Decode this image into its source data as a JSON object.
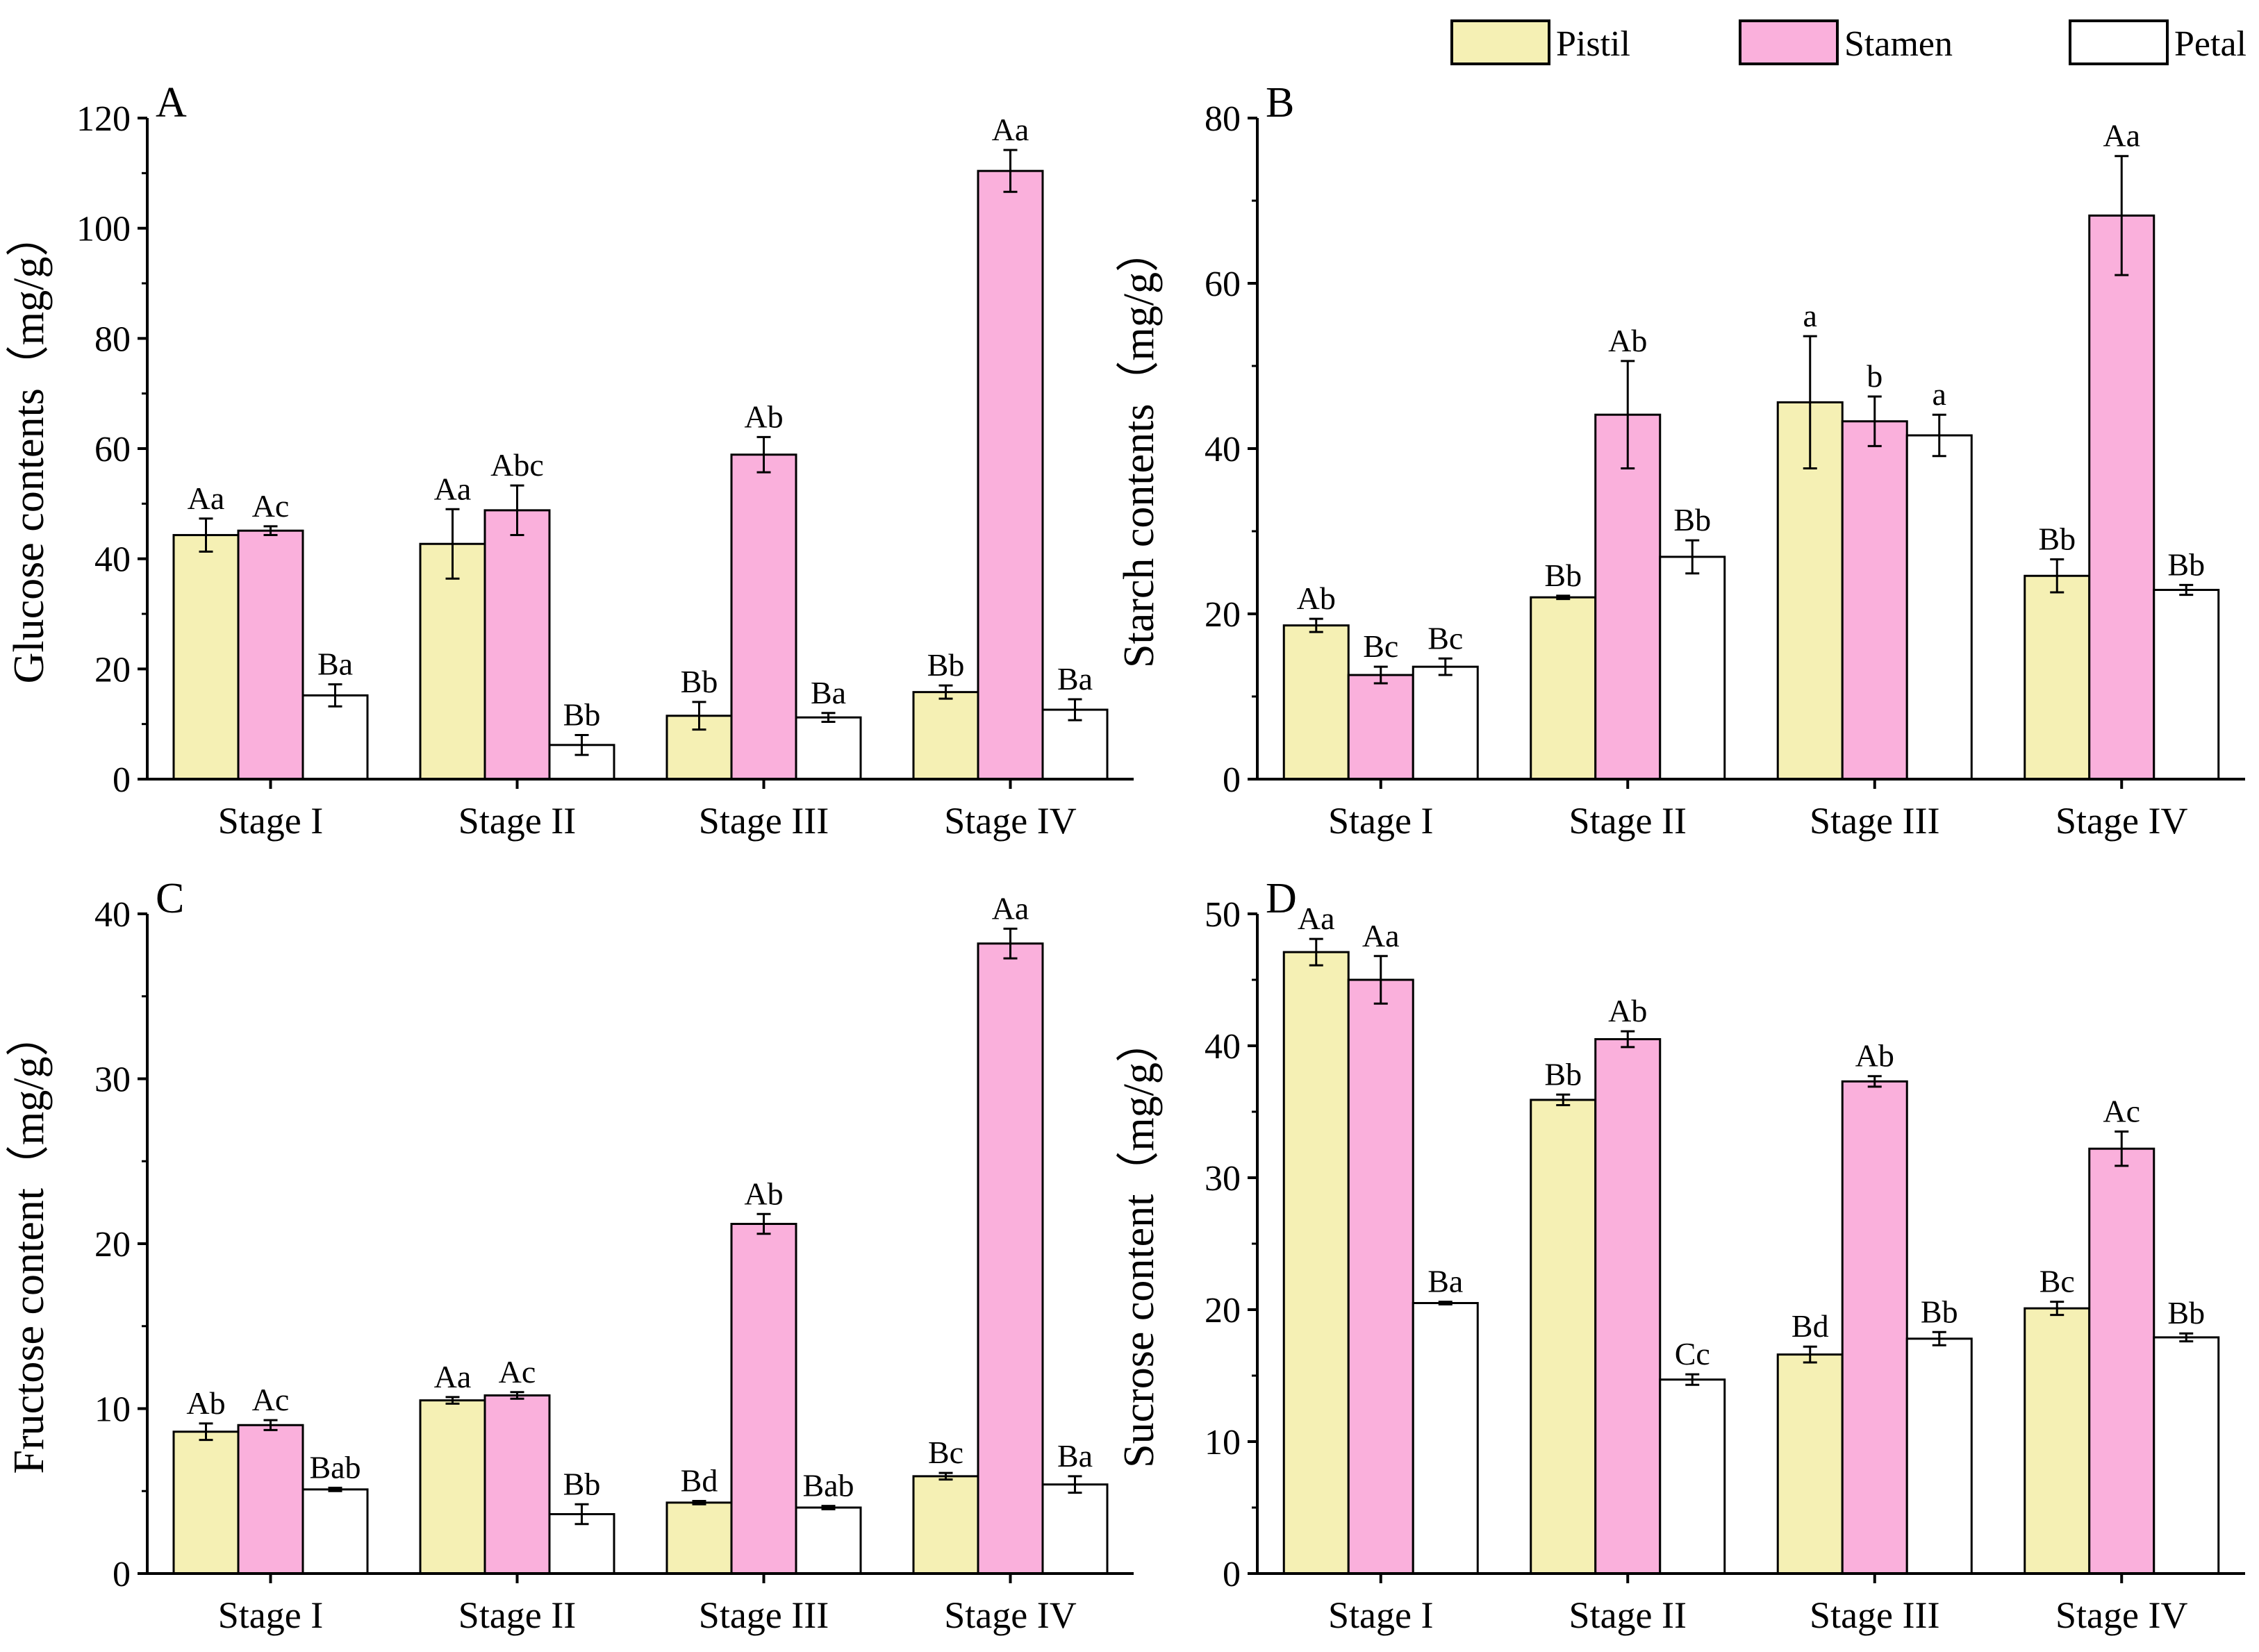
{
  "colors": {
    "pistil": "#f5f0b4",
    "stamen": "#fab0dc",
    "petal": "#ffffff",
    "stroke": "#000000"
  },
  "legend": [
    {
      "key": "pistil",
      "label": "Pistil"
    },
    {
      "key": "stamen",
      "label": "Stamen"
    },
    {
      "key": "petal",
      "label": "Petal"
    }
  ],
  "chart_data": [
    {
      "type": "bar",
      "panel": "A",
      "ylabel": "Glucose contents（mg/g）",
      "ylim": [
        0,
        120
      ],
      "yticks": [
        0,
        20,
        40,
        60,
        80,
        100,
        120
      ],
      "categories": [
        "Stage I",
        "Stage II",
        "Stage III",
        "Stage IV"
      ],
      "series": [
        {
          "name": "Pistil",
          "key": "pistil",
          "values": [
            44.3,
            42.7,
            11.5,
            15.8
          ],
          "errors": [
            3.0,
            6.3,
            2.5,
            1.2
          ],
          "labels": [
            "Aa",
            "Aa",
            "Bb",
            "Bb"
          ]
        },
        {
          "name": "Stamen",
          "key": "stamen",
          "values": [
            45.1,
            48.8,
            58.9,
            110.4
          ],
          "errors": [
            0.8,
            4.5,
            3.2,
            3.8
          ],
          "labels": [
            "Ac",
            "Abc",
            "Ab",
            "Aa"
          ]
        },
        {
          "name": "Petal",
          "key": "petal",
          "values": [
            15.2,
            6.2,
            11.2,
            12.6
          ],
          "errors": [
            2.0,
            1.8,
            0.8,
            1.9
          ],
          "labels": [
            "Ba",
            "Bb",
            "Ba",
            "Ba"
          ]
        }
      ]
    },
    {
      "type": "bar",
      "panel": "B",
      "ylabel": "Starch contents（mg/g）",
      "ylim": [
        0,
        80
      ],
      "yticks": [
        0,
        20,
        40,
        60,
        80
      ],
      "categories": [
        "Stage I",
        "Stage II",
        "Stage III",
        "Stage IV"
      ],
      "series": [
        {
          "name": "Pistil",
          "key": "pistil",
          "values": [
            18.6,
            22.0,
            45.6,
            24.6
          ],
          "errors": [
            0.8,
            0.2,
            8.0,
            2.0
          ],
          "labels": [
            "Ab",
            "Bb",
            "a",
            "Bb"
          ]
        },
        {
          "name": "Stamen",
          "key": "stamen",
          "values": [
            12.6,
            44.1,
            43.3,
            68.2
          ],
          "errors": [
            1.0,
            6.5,
            3.0,
            7.2
          ],
          "labels": [
            "Bc",
            "Ab",
            "b",
            "Aa"
          ]
        },
        {
          "name": "Petal",
          "key": "petal",
          "values": [
            13.6,
            26.9,
            41.6,
            22.9
          ],
          "errors": [
            1.0,
            2.0,
            2.5,
            0.6
          ],
          "labels": [
            "Bc",
            "Bb",
            "a",
            "Bb"
          ]
        }
      ]
    },
    {
      "type": "bar",
      "panel": "C",
      "ylabel": "Fructose content（mg/g）",
      "ylim": [
        0,
        40
      ],
      "yticks": [
        0,
        10,
        20,
        30,
        40
      ],
      "categories": [
        "Stage I",
        "Stage II",
        "Stage III",
        "Stage IV"
      ],
      "series": [
        {
          "name": "Pistil",
          "key": "pistil",
          "values": [
            8.6,
            10.5,
            4.3,
            5.9
          ],
          "errors": [
            0.5,
            0.2,
            0.1,
            0.2
          ],
          "labels": [
            "Ab",
            "Aa",
            "Bd",
            "Bc"
          ]
        },
        {
          "name": "Stamen",
          "key": "stamen",
          "values": [
            9.0,
            10.8,
            21.2,
            38.2
          ],
          "errors": [
            0.3,
            0.2,
            0.6,
            0.9
          ],
          "labels": [
            "Ac",
            "Ac",
            "Ab",
            "Aa"
          ]
        },
        {
          "name": "Petal",
          "key": "petal",
          "values": [
            5.1,
            3.6,
            4.0,
            5.4
          ],
          "errors": [
            0.1,
            0.6,
            0.1,
            0.5
          ],
          "labels": [
            "Bab",
            "Bb",
            "Bab",
            "Ba"
          ]
        }
      ]
    },
    {
      "type": "bar",
      "panel": "D",
      "ylabel": "Sucrose content（mg/g）",
      "ylim": [
        0,
        50
      ],
      "yticks": [
        0,
        10,
        20,
        30,
        40,
        50
      ],
      "categories": [
        "Stage I",
        "Stage II",
        "Stage III",
        "Stage IV"
      ],
      "series": [
        {
          "name": "Pistil",
          "key": "pistil",
          "values": [
            47.1,
            35.9,
            16.6,
            20.1
          ],
          "errors": [
            1.0,
            0.4,
            0.6,
            0.5
          ],
          "labels": [
            "Aa",
            "Bb",
            "Bd",
            "Bc"
          ]
        },
        {
          "name": "Stamen",
          "key": "stamen",
          "values": [
            45.0,
            40.5,
            37.3,
            32.2
          ],
          "errors": [
            1.8,
            0.6,
            0.4,
            1.3
          ],
          "labels": [
            "Aa",
            "Ab",
            "Ab",
            "Ac"
          ]
        },
        {
          "name": "Petal",
          "key": "petal",
          "values": [
            20.5,
            14.7,
            17.8,
            17.9
          ],
          "errors": [
            0.1,
            0.4,
            0.5,
            0.3
          ],
          "labels": [
            "Ba",
            "Cc",
            "Bb",
            "Bb"
          ]
        }
      ]
    }
  ]
}
